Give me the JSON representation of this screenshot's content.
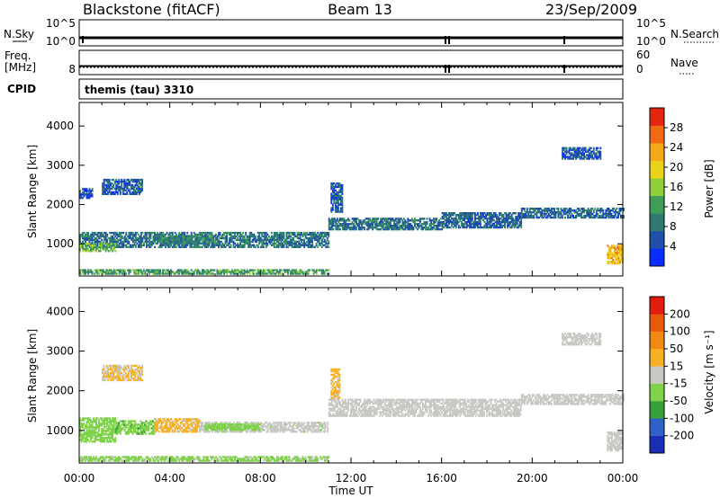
{
  "header": {
    "station": "Blackstone (fitACF)",
    "beam": "Beam 13",
    "date": "23/Sep/2009"
  },
  "strips": {
    "nsky_label": "N.Sky",
    "nsky_ticks": [
      "10^5",
      "10^0"
    ],
    "nsearch_label": "N.Search",
    "nsearch_ticks": [
      "10^5",
      "10^0"
    ],
    "freq_label_1": "Freq.",
    "freq_label_2": "[MHz]",
    "freq_ticks": [
      "8"
    ],
    "nave_label": "Nave",
    "nave_ticks": [
      "60",
      "0"
    ],
    "cpid_label": "CPID",
    "cpid_text": "themis (tau) 3310"
  },
  "time_axis": {
    "label": "Time UT",
    "ticks": [
      "00:00",
      "04:00",
      "08:00",
      "12:00",
      "16:00",
      "20:00",
      "00:00"
    ]
  },
  "colors": {
    "power": [
      "#0a2dff",
      "#1f4fa8",
      "#2f7b73",
      "#3f9d5a",
      "#8fcf3a",
      "#e8d21a",
      "#f5a818",
      "#ef6a12",
      "#e52410"
    ],
    "velocity": [
      "#1a2fb5",
      "#2f62c9",
      "#3aa03a",
      "#7fd24a",
      "#c8c8c4",
      "#f7b125",
      "#f08a10",
      "#ea5a0c",
      "#e01c0c"
    ],
    "ground": "#c8c8c4"
  },
  "chart_data": [
    {
      "type": "heatmap",
      "title": "Power",
      "colorbar_label": "Power [dB]",
      "colorbar_ticks": [
        "28",
        "24",
        "20",
        "16",
        "12",
        "8",
        "4"
      ],
      "xlabel": "Time UT",
      "ylabel": "Slant Range [km]",
      "yticks": [
        "4000",
        "3000",
        "2000",
        "1000"
      ],
      "xlim": [
        0,
        24
      ],
      "ylim": [
        180,
        4600
      ],
      "scale": [
        0,
        32
      ],
      "echo_regions": [
        {
          "t": [
            0.0,
            0.55
          ],
          "r": [
            2150,
            2400
          ],
          "v": 5
        },
        {
          "t": [
            1.0,
            2.8
          ],
          "r": [
            2250,
            2650
          ],
          "v": 6
        },
        {
          "t": [
            0.0,
            11.0
          ],
          "r": [
            900,
            1300
          ],
          "v": 8
        },
        {
          "t": [
            0.0,
            1.6
          ],
          "r": [
            800,
            1000
          ],
          "v": 14
        },
        {
          "t": [
            3.5,
            6.0
          ],
          "r": [
            1000,
            1200
          ],
          "v": 10
        },
        {
          "t": [
            0.0,
            11.0
          ],
          "r": [
            220,
            330
          ],
          "v": 12
        },
        {
          "t": [
            11.0,
            16.0
          ],
          "r": [
            1350,
            1650
          ],
          "v": 8
        },
        {
          "t": [
            11.1,
            11.6
          ],
          "r": [
            1800,
            2550
          ],
          "v": 6
        },
        {
          "t": [
            16.0,
            19.5
          ],
          "r": [
            1400,
            1800
          ],
          "v": 7
        },
        {
          "t": [
            19.5,
            24.0
          ],
          "r": [
            1650,
            1900
          ],
          "v": 7
        },
        {
          "t": [
            21.3,
            23.0
          ],
          "r": [
            3150,
            3450
          ],
          "v": 5
        },
        {
          "t": [
            23.3,
            24.0
          ],
          "r": [
            480,
            950
          ],
          "v": 22
        }
      ]
    },
    {
      "type": "heatmap",
      "title": "Velocity",
      "colorbar_label": "Velocity [m s⁻¹]",
      "colorbar_ticks": [
        "200",
        "100",
        "50",
        "15",
        "-15",
        "-50",
        "-100",
        "-200"
      ],
      "xlabel": "Time UT",
      "ylabel": "Slant Range [km]",
      "yticks": [
        "4000",
        "3000",
        "2000",
        "1000"
      ],
      "xlim": [
        0,
        24
      ],
      "ylim": [
        180,
        4600
      ],
      "scale": [
        -250,
        250
      ],
      "echo_regions": [
        {
          "t": [
            0.0,
            1.6
          ],
          "r": [
            700,
            1300
          ],
          "v": -60
        },
        {
          "t": [
            1.6,
            3.3
          ],
          "r": [
            900,
            1250
          ],
          "v": -70
        },
        {
          "t": [
            3.3,
            5.3
          ],
          "r": [
            950,
            1300
          ],
          "v": 40
        },
        {
          "t": [
            5.3,
            11.0
          ],
          "r": [
            950,
            1200
          ],
          "v": -10
        },
        {
          "t": [
            5.5,
            8.0
          ],
          "r": [
            1000,
            1150
          ],
          "v": -60
        },
        {
          "t": [
            0.0,
            11.0
          ],
          "r": [
            220,
            330
          ],
          "v": -40
        },
        {
          "t": [
            1.0,
            2.8
          ],
          "r": [
            2250,
            2650
          ],
          "v": 30
        },
        {
          "t": [
            11.0,
            19.5
          ],
          "r": [
            1350,
            1800
          ],
          "v": 0
        },
        {
          "t": [
            11.1,
            11.5
          ],
          "r": [
            1800,
            2550
          ],
          "v": 40
        },
        {
          "t": [
            19.5,
            24.0
          ],
          "r": [
            1650,
            1900
          ],
          "v": 0
        },
        {
          "t": [
            21.3,
            23.0
          ],
          "r": [
            3150,
            3450
          ],
          "v": 0
        },
        {
          "t": [
            23.3,
            24.0
          ],
          "r": [
            480,
            950
          ],
          "v": 0
        }
      ]
    }
  ]
}
